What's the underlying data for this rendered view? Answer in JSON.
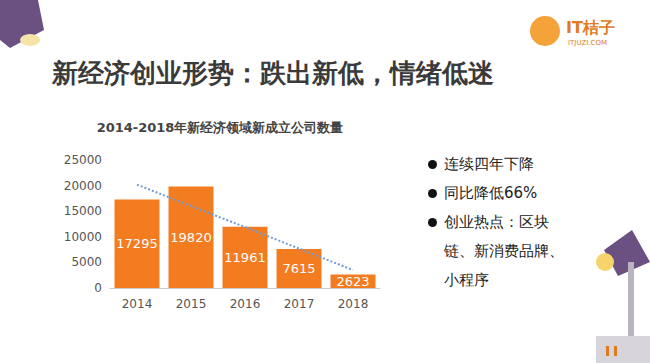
{
  "page": {
    "heading": "新经济创业形势：跌出新低，情绪低迷",
    "logo": {
      "name": "IT桔子",
      "site": "ITJUZI.COM"
    },
    "bullets": [
      "连续四年下降",
      "同比降低66%",
      "创业热点：区块链、新消费品牌、小程序"
    ]
  },
  "chart_data": {
    "type": "bar",
    "title": "2014-2018年新经济领域新成立公司数量",
    "categories": [
      "2014",
      "2015",
      "2016",
      "2017",
      "2018"
    ],
    "series": [
      {
        "type": "bar",
        "color": "#f47c20",
        "values": [
          17295,
          19820,
          11961,
          7615,
          2623
        ]
      },
      {
        "type": "line",
        "color": "#6f9bd8",
        "line_style": "dotted",
        "values": [
          20200,
          16000,
          11900,
          7700,
          3500
        ]
      }
    ],
    "ylim": [
      0,
      25000
    ],
    "yticks": [
      0,
      5000,
      10000,
      15000,
      20000,
      25000
    ],
    "grid": false,
    "data_labels": true
  }
}
